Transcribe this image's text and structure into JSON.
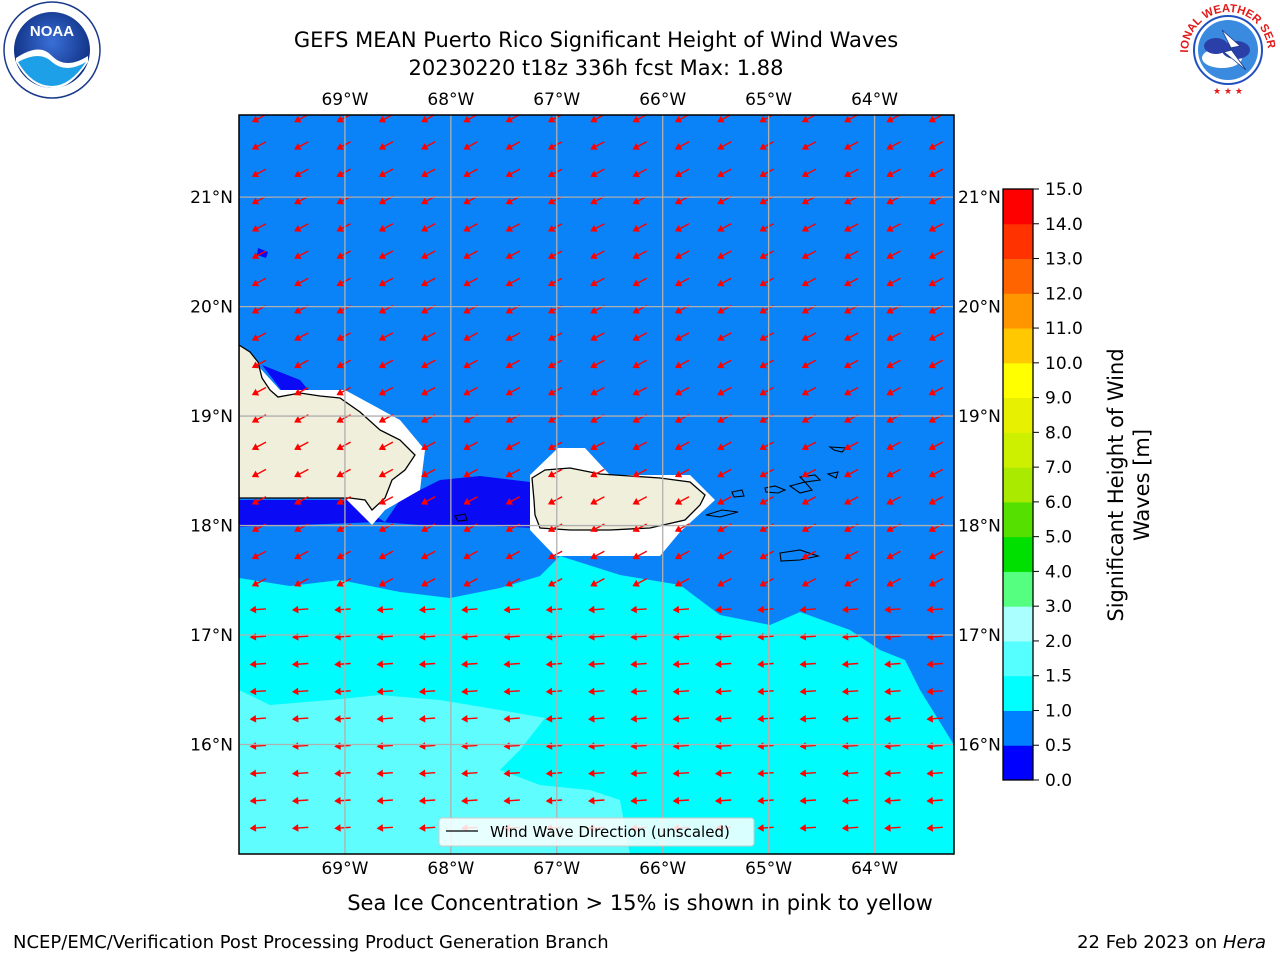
{
  "title": {
    "line1": "GEFS MEAN Puerto Rico Significant Height of Wind Waves",
    "line2": "20230220 t18z 336h fcst   Max: 1.88"
  },
  "map": {
    "lon_range": [
      -70.0,
      -63.25
    ],
    "lat_range": [
      15.0,
      21.75
    ],
    "lon_ticks": [
      -69,
      -68,
      -67,
      -66,
      -65,
      -64
    ],
    "lat_ticks": [
      16,
      17,
      18,
      19,
      20,
      21
    ],
    "lon_tick_labels": [
      "69°W",
      "68°W",
      "67°W",
      "66°W",
      "65°W",
      "64°W"
    ],
    "lat_tick_labels": [
      "16°N",
      "17°N",
      "18°N",
      "19°N",
      "20°N",
      "21°N"
    ],
    "regions": {
      "hispaniola": "Hispaniola",
      "puerto_rico": "Puerto Rico",
      "virgin_islands": "Virgin Islands"
    },
    "max_wave_height_m": 1.88,
    "vector_color": "#ff0000",
    "land_color": "#efefdb"
  },
  "legend": {
    "label": "Wind Wave Direction (unscaled)"
  },
  "colorbar": {
    "label_line1": "Significant Height of Wind",
    "label_line2": "Waves [m]",
    "ticks": [
      "0.0",
      "0.5",
      "1.0",
      "1.5",
      "2.0",
      "3.0",
      "4.0",
      "5.0",
      "6.0",
      "7.0",
      "8.0",
      "9.0",
      "10.0",
      "11.0",
      "12.0",
      "13.0",
      "14.0",
      "15.0"
    ],
    "colors": [
      "#0000ff",
      "#0080ff",
      "#00ffff",
      "#55ffff",
      "#aaffff",
      "#55ff80",
      "#00e000",
      "#55e000",
      "#aaea00",
      "#cdf000",
      "#e6f000",
      "#ffff00",
      "#ffc800",
      "#ff9600",
      "#ff6400",
      "#ff3200",
      "#ff0000"
    ]
  },
  "sea_ice_note": "Sea Ice Concentration > 15% is shown in pink to yellow",
  "footer": {
    "left": "NCEP/EMC/Verification Post Processing Product Generation Branch",
    "right_prefix": "22 Feb 2023 on ",
    "right_machine": "Hera"
  },
  "logos": {
    "noaa_text": "NOAA",
    "noaa_ring": "NATIONAL OCEANIC AND ATMOSPHERIC ADMINISTRATION · U.S. DEPARTMENT OF COMMERCE",
    "nws_ring": "NATIONAL WEATHER SERVICE"
  }
}
